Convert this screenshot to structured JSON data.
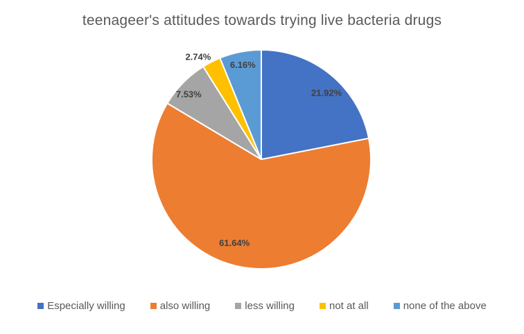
{
  "title": "teenageer's attitudes towards trying live bacteria drugs",
  "chart_data": {
    "type": "pie",
    "title": "teenageer's attitudes towards trying live bacteria drugs",
    "categories": [
      "Especially willing",
      "also willing",
      "less willing",
      "not at all",
      "none of the above"
    ],
    "values": [
      21.92,
      61.64,
      7.53,
      2.74,
      6.16
    ],
    "labels": [
      "21.92%",
      "61.64%",
      "7.53%",
      "2.74%",
      "6.16%"
    ],
    "colors": [
      "#4472C4",
      "#ED7D31",
      "#A5A5A5",
      "#FFC000",
      "#5B9BD5"
    ],
    "slice_border_color": "#FFFFFF",
    "title_color": "#595959",
    "data_label_color": "#404040",
    "legend_text_color": "#595959",
    "legend_position": "bottom",
    "start_angle_deg": 0,
    "direction": "clockwise",
    "background": "#FFFFFF"
  }
}
